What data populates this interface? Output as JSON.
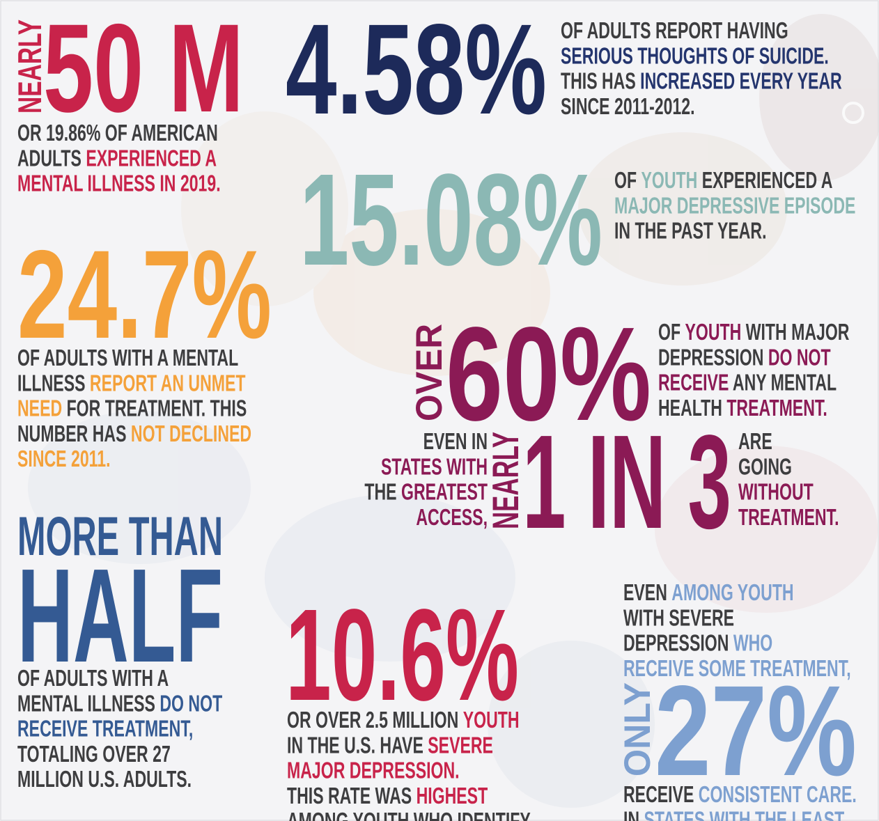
{
  "blocks": [
    {
      "vertical": "NEARLY",
      "big": "50 M",
      "lines": [
        [
          "OR 19.86% OF AMERICAN"
        ],
        [
          "ADULTS ",
          {
            "text": "EXPERIENCED A",
            "accent": true
          }
        ],
        [
          {
            "text": "MENTAL ILLNESS IN 2019.",
            "accent": true
          }
        ]
      ]
    },
    {
      "big": "4.58%",
      "lines": [
        [
          "OF ADULTS REPORT HAVING"
        ],
        [
          {
            "text": "SERIOUS THOUGHTS OF SUICIDE.",
            "accent": true
          }
        ],
        [
          "THIS HAS ",
          {
            "text": "INCREASED EVERY YEAR",
            "accent": true
          }
        ],
        [
          "SINCE 2011-2012."
        ]
      ]
    },
    {
      "big": "15.08%",
      "lines": [
        [
          "OF ",
          {
            "text": "YOUTH",
            "accent": true
          },
          " EXPERIENCED A"
        ],
        [
          {
            "text": "MAJOR DEPRESSIVE EPISODE",
            "accent": true
          }
        ],
        [
          "IN THE PAST YEAR."
        ]
      ]
    },
    {
      "big": "24.7%",
      "lines": [
        [
          "OF ADULTS WITH A MENTAL"
        ],
        [
          "ILLNESS ",
          {
            "text": "REPORT AN UNMET",
            "accent": true
          }
        ],
        [
          {
            "text": "NEED",
            "accent": true
          },
          " FOR TREATMENT. THIS"
        ],
        [
          "NUMBER HAS ",
          {
            "text": "NOT DECLINED",
            "accent": true
          }
        ],
        [
          {
            "text": "SINCE 2011.",
            "accent": true
          }
        ]
      ]
    },
    {
      "vertical": "OVER",
      "big": "60%",
      "lines": [
        [
          "OF ",
          {
            "text": "YOUTH",
            "accent": true
          },
          " WITH MAJOR"
        ],
        [
          "DEPRESSION ",
          {
            "text": "DO NOT",
            "accent": true
          }
        ],
        [
          {
            "text": "RECEIVE",
            "accent": true
          },
          " ANY MENTAL"
        ],
        [
          "HEALTH ",
          {
            "text": "TREATMENT.",
            "accent": true
          }
        ]
      ]
    },
    {
      "vertical": "NEARLY",
      "big": "1 IN 3",
      "lines": [
        [
          "EVEN IN"
        ],
        [
          {
            "text": "STATES WITH",
            "accent": true
          }
        ],
        [
          "THE ",
          {
            "text": "GREATEST",
            "accent": true
          }
        ],
        [
          {
            "text": "ACCESS,",
            "accent": true
          }
        ]
      ],
      "lines2": [
        [
          "ARE"
        ],
        [
          "GOING"
        ],
        [
          {
            "text": "WITHOUT",
            "accent": true
          }
        ],
        [
          {
            "text": "TREATMENT.",
            "accent": true
          }
        ]
      ]
    },
    {
      "lead": "MORE THAN",
      "big": "HALF",
      "lines": [
        [
          "OF ADULTS WITH A"
        ],
        [
          "MENTAL ILLNESS ",
          {
            "text": "DO NOT",
            "accent": true
          }
        ],
        [
          {
            "text": "RECEIVE TREATMENT,",
            "accent": true
          }
        ],
        [
          "TOTALING OVER 27"
        ],
        [
          "MILLION U.S. ADULTS."
        ]
      ]
    },
    {
      "big": "10.6%",
      "lines": [
        [
          "OR OVER 2.5 MILLION ",
          {
            "text": "YOUTH",
            "accent": true
          }
        ],
        [
          "IN THE U.S. HAVE ",
          {
            "text": "SEVERE",
            "accent": true
          }
        ],
        [
          {
            "text": "MAJOR DEPRESSION.",
            "accent": true
          }
        ],
        [
          "THIS RATE WAS ",
          {
            "text": "HIGHEST",
            "accent": true
          }
        ],
        [
          "AMONG YOUTH WHO IDENTIFY"
        ]
      ]
    },
    {
      "vertical": "ONLY",
      "big": "27%",
      "lines": [
        [
          "EVEN ",
          {
            "text": "AMONG YOUTH",
            "accent": true
          }
        ],
        [
          "WITH SEVERE"
        ],
        [
          "DEPRESSION ",
          {
            "text": "WHO",
            "accent": true
          }
        ],
        [
          {
            "text": "RECEIVE SOME TREATMENT,",
            "accent": true
          }
        ]
      ],
      "lines2": [
        [
          "RECEIVE ",
          {
            "text": "CONSISTENT CARE.",
            "accent": true
          }
        ],
        [
          "IN ",
          {
            "text": "STATES WITH THE LEAST",
            "accent": true
          }
        ]
      ]
    }
  ]
}
